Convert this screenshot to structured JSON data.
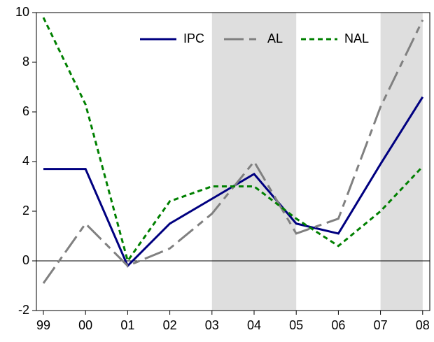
{
  "chart_data": {
    "type": "line",
    "categories": [
      "99",
      "00",
      "01",
      "02",
      "03",
      "04",
      "05",
      "06",
      "07",
      "08"
    ],
    "series": [
      {
        "name": "IPC",
        "color": "#000080",
        "dash": "solid",
        "values": [
          3.7,
          3.7,
          -0.2,
          1.5,
          2.5,
          3.5,
          1.5,
          1.1,
          3.9,
          6.6
        ]
      },
      {
        "name": "AL",
        "color": "#808080",
        "dash": "long",
        "values": [
          -0.9,
          1.5,
          -0.2,
          0.5,
          1.9,
          4.0,
          1.1,
          1.7,
          6.2,
          9.7
        ]
      },
      {
        "name": "NAL",
        "color": "#008000",
        "dash": "short",
        "values": [
          9.8,
          6.3,
          0.0,
          2.4,
          3.0,
          3.0,
          1.7,
          0.6,
          2.0,
          3.8
        ]
      }
    ],
    "ylim": [
      -2,
      10
    ],
    "yticks": [
      -2,
      0,
      2,
      4,
      6,
      8,
      10
    ],
    "shaded_ranges": [
      [
        "03",
        "05"
      ],
      [
        "07",
        "08"
      ]
    ],
    "shade_color": "#dedede",
    "zero_line": true,
    "legend": "top"
  }
}
